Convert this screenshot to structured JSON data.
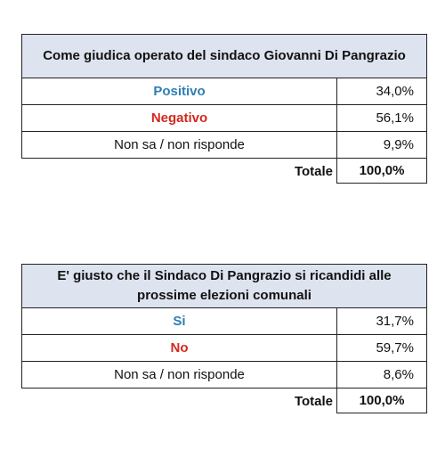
{
  "table1": {
    "header": "Come  giudica operato del sindaco Giovanni Di Pangrazio",
    "rows": [
      {
        "label": "Positivo",
        "value": "34,0%"
      },
      {
        "label": "Negativo",
        "value": "56,1%"
      },
      {
        "label": "Non sa / non risponde",
        "value": "9,9%"
      }
    ],
    "total_label": "Totale",
    "total_value": "100,0%"
  },
  "table2": {
    "header": "E' giusto che il Sindaco Di Pangrazio si ricandidi alle prossime elezioni comunali",
    "rows": [
      {
        "label": "Si",
        "value": "31,7%"
      },
      {
        "label": "No",
        "value": "59,7%"
      },
      {
        "label": "Non sa / non risponde",
        "value": "8,6%"
      }
    ],
    "total_label": "Totale",
    "total_value": "100,0%"
  },
  "colors": {
    "positive": "#2e7fb3",
    "negative": "#d4281c",
    "header_bg": "#dde3ef"
  }
}
